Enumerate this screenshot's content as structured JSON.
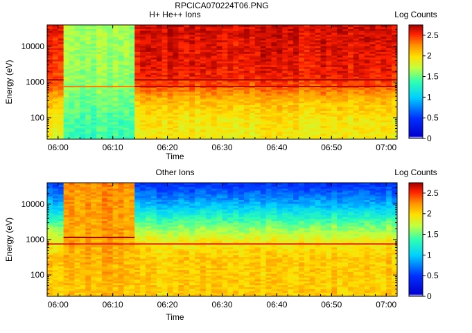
{
  "figure_title": "RPCICA070224T06.PNG",
  "chart_data": [
    {
      "type": "heatmap",
      "title": "H+ He++ Ions",
      "xlabel": "Time",
      "ylabel": "Energy (eV)",
      "x_ticks": [
        "06:00",
        "06:10",
        "06:20",
        "06:30",
        "06:40",
        "06:50",
        "07:00"
      ],
      "x_range": [
        "05:58",
        "07:02"
      ],
      "y_scale": "log",
      "y_ticks": [
        100,
        1000,
        10000
      ],
      "y_tick_labels": [
        "100",
        "1000",
        "10000"
      ],
      "y_range": [
        25,
        40000
      ],
      "colorbar": {
        "label": "Log Counts",
        "range": [
          0,
          2.75
        ],
        "ticks": [
          0,
          0.5,
          1,
          1.5,
          2,
          2.5
        ],
        "tick_labels": [
          "0",
          "0.5",
          "1",
          "1.5",
          "2",
          "2.5"
        ]
      },
      "intervals": [
        {
          "start": "05:58",
          "end": "06:01",
          "profile": [
            [
              25,
              1.85
            ],
            [
              100,
              1.95
            ],
            [
              300,
              2.1
            ],
            [
              1000,
              2.45
            ],
            [
              40000,
              2.6
            ]
          ]
        },
        {
          "start": "06:01",
          "end": "06:14",
          "profile": [
            [
              25,
              1.35
            ],
            [
              1000,
              1.6
            ],
            [
              40000,
              1.65
            ]
          ]
        },
        {
          "start": "06:14",
          "end": "07:02",
          "profile": [
            [
              25,
              1.9
            ],
            [
              100,
              1.95
            ],
            [
              300,
              2.1
            ],
            [
              800,
              2.4
            ],
            [
              1500,
              2.55
            ],
            [
              40000,
              2.65
            ]
          ]
        }
      ],
      "lines": [
        {
          "energy": 1150,
          "start": "05:58",
          "end": "06:01",
          "value": 2.75
        },
        {
          "energy": 750,
          "start": "06:01",
          "end": "06:14",
          "value": 2.3
        },
        {
          "energy": 1150,
          "start": "06:14",
          "end": "07:02",
          "value": 2.75
        },
        {
          "energy": 750,
          "start": "06:14",
          "end": "07:02",
          "value": 2.7
        }
      ]
    },
    {
      "type": "heatmap",
      "title": "Other Ions",
      "xlabel": "Time",
      "ylabel": "Energy (eV)",
      "x_ticks": [
        "06:00",
        "06:10",
        "06:20",
        "06:30",
        "06:40",
        "06:50",
        "07:00"
      ],
      "x_range": [
        "05:58",
        "07:02"
      ],
      "y_scale": "log",
      "y_ticks": [
        100,
        1000,
        10000
      ],
      "y_tick_labels": [
        "100",
        "1000",
        "10000"
      ],
      "y_range": [
        25,
        40000
      ],
      "colorbar": {
        "label": "Log Counts",
        "range": [
          0,
          2.75
        ],
        "ticks": [
          0,
          0.5,
          1,
          1.5,
          2,
          2.5
        ],
        "tick_labels": [
          "0",
          "0.5",
          "1",
          "1.5",
          "2",
          "2.5"
        ]
      },
      "intervals": [
        {
          "start": "05:58",
          "end": "06:01",
          "profile": [
            [
              25,
              2.05
            ],
            [
              300,
              2.1
            ],
            [
              1000,
              1.85
            ],
            [
              3000,
              1.45
            ],
            [
              10000,
              0.95
            ],
            [
              40000,
              0.55
            ]
          ]
        },
        {
          "start": "06:01",
          "end": "06:14",
          "profile": [
            [
              25,
              2.1
            ],
            [
              40000,
              2.25
            ]
          ]
        },
        {
          "start": "06:14",
          "end": "07:02",
          "profile": [
            [
              25,
              2.05
            ],
            [
              300,
              2.05
            ],
            [
              900,
              1.9
            ],
            [
              3000,
              1.45
            ],
            [
              10000,
              0.9
            ],
            [
              40000,
              0.45
            ]
          ]
        }
      ],
      "lines": [
        {
          "energy": 1150,
          "start": "06:01",
          "end": "06:14",
          "value": 2.75
        },
        {
          "energy": 750,
          "start": "05:58",
          "end": "07:02",
          "value": 2.6
        }
      ]
    }
  ]
}
